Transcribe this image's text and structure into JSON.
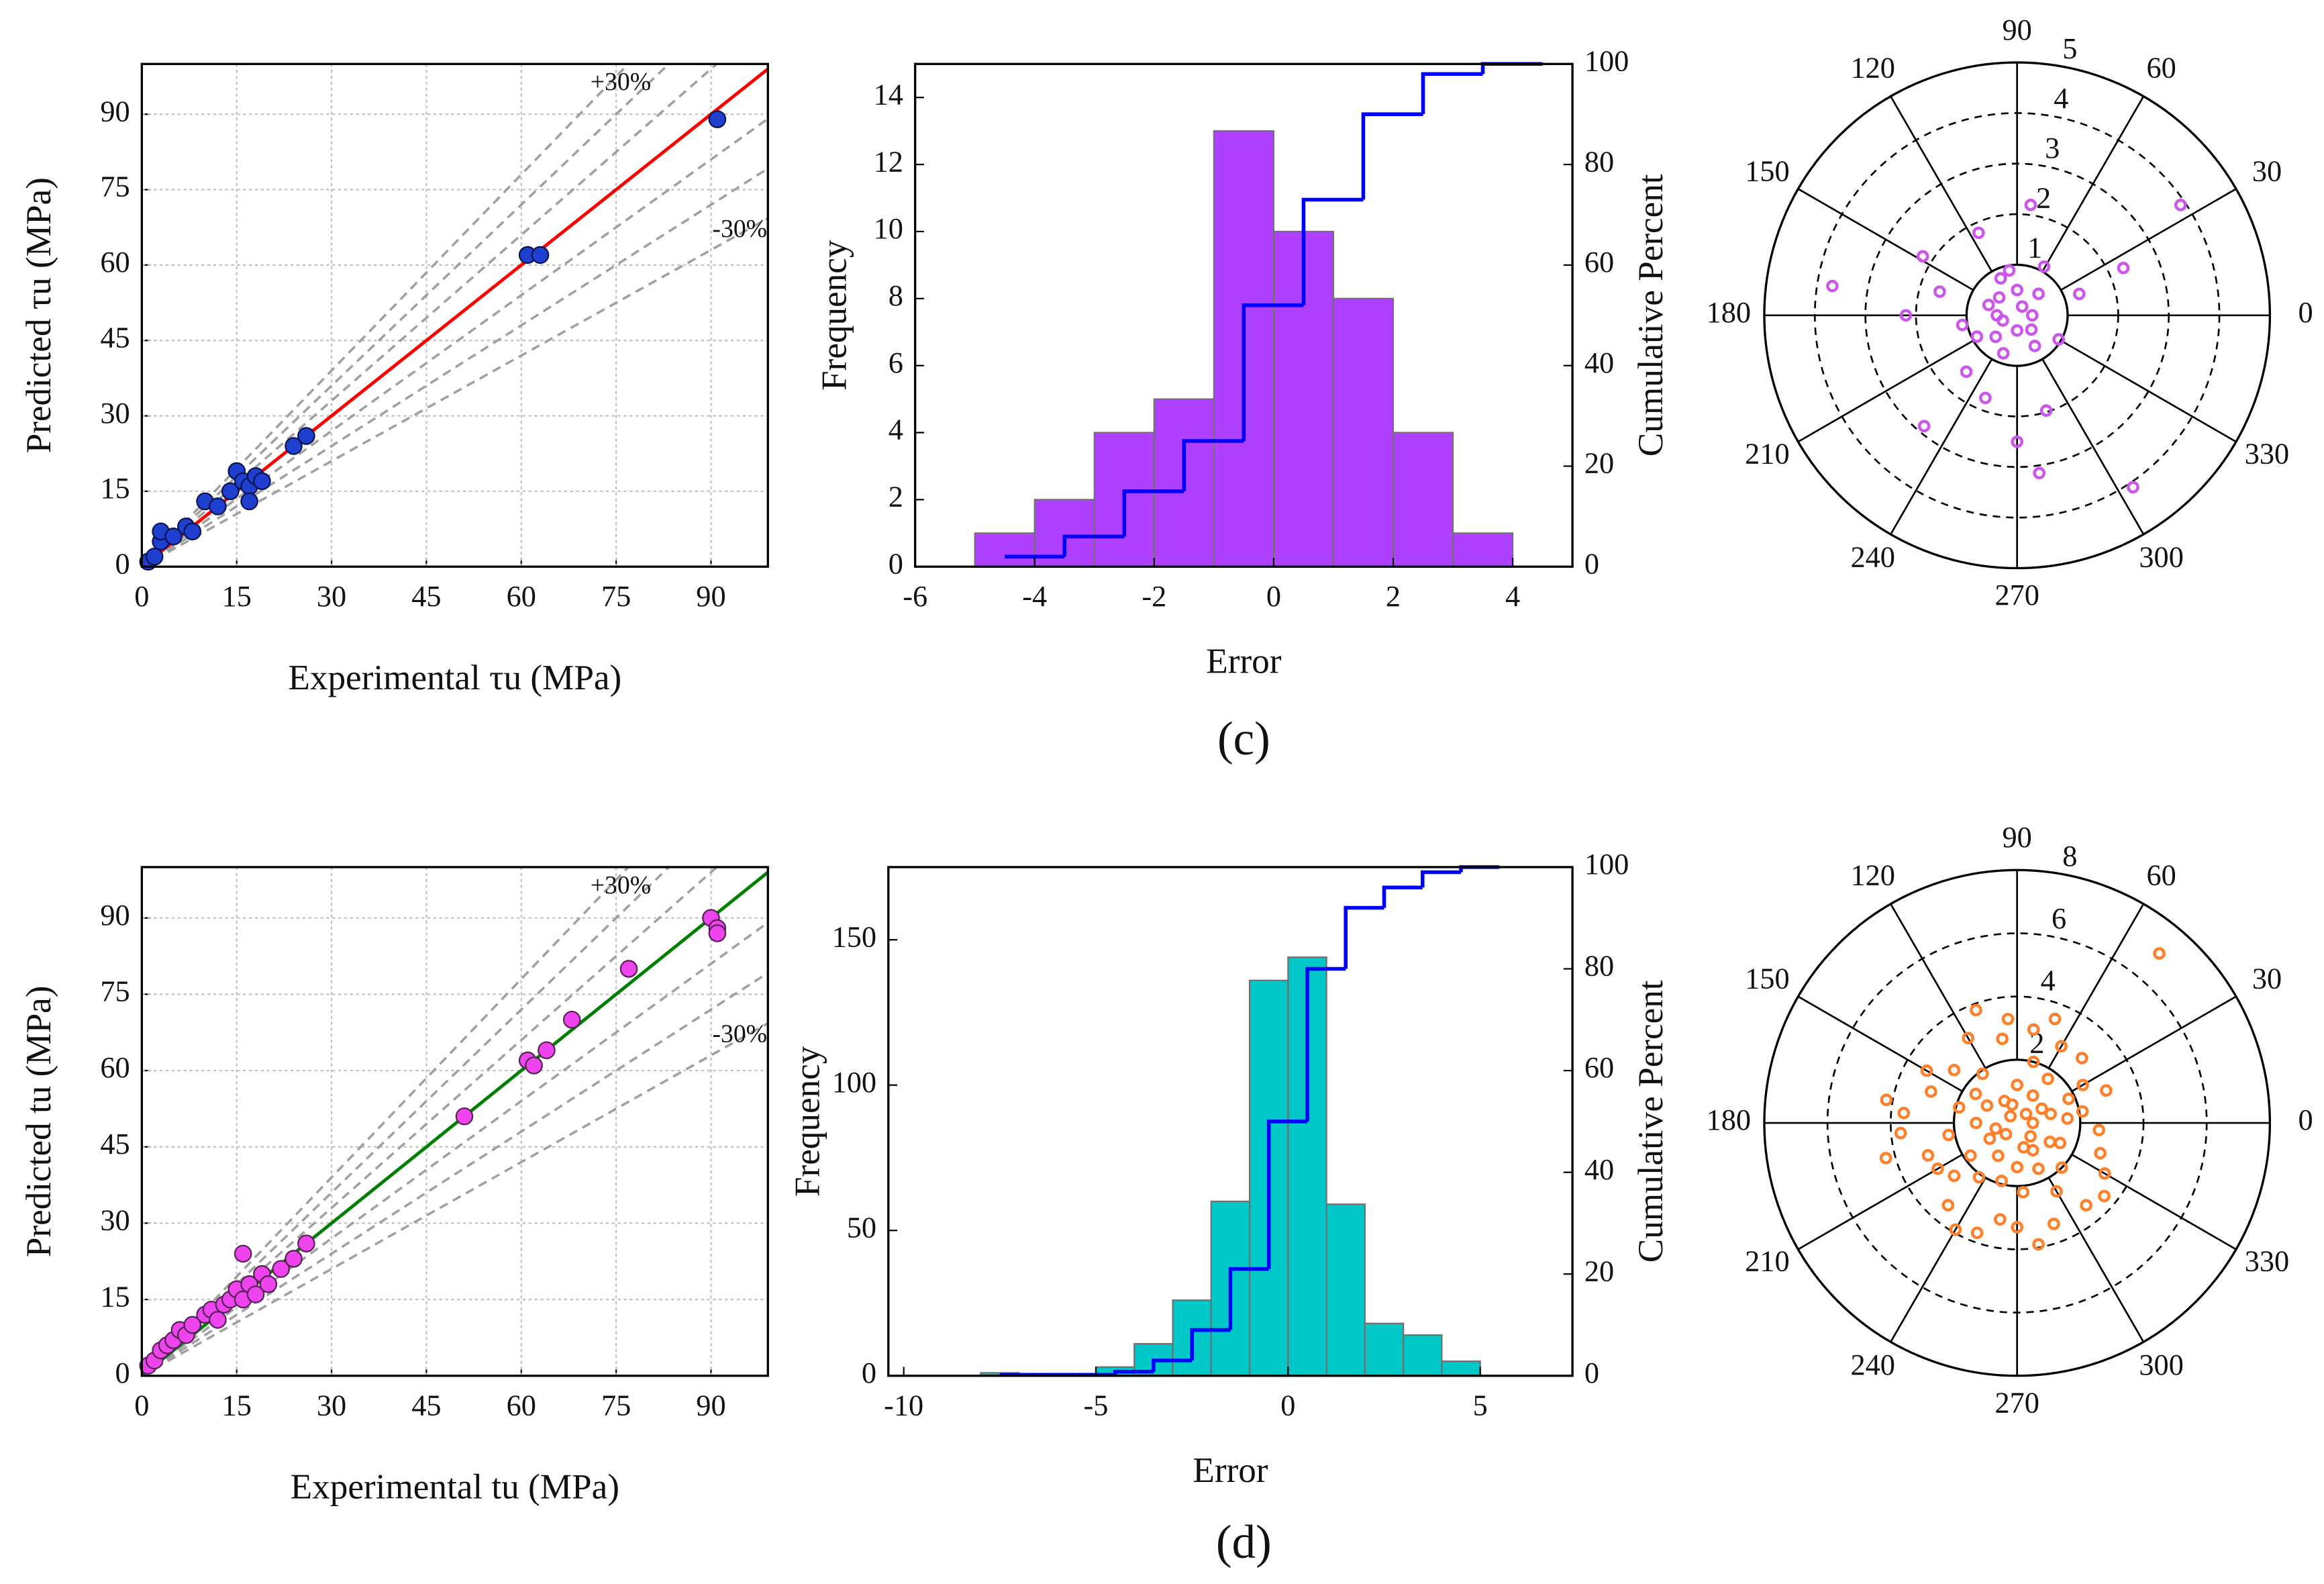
{
  "chart_data": [
    {
      "type": "scatter",
      "x_label": "Experimental τu (MPa)",
      "y_label": "Predicted τu (MPa)",
      "x": [
        1,
        2,
        3,
        3,
        5,
        7,
        8,
        10,
        12,
        14,
        15,
        16,
        17,
        18,
        19,
        17,
        24,
        26,
        61,
        63,
        91
      ],
      "values": [
        1,
        2,
        5,
        7,
        6,
        8,
        7,
        13,
        12,
        15,
        19,
        17,
        16,
        18,
        17,
        13,
        24,
        26,
        62,
        62,
        89
      ],
      "color": "#1f3fcf",
      "edge_color": "#0a1450",
      "xlim": [
        0,
        99
      ],
      "ylim": [
        0,
        100
      ],
      "xticks": [
        0,
        15,
        30,
        45,
        60,
        75,
        90
      ],
      "yticks": [
        0,
        15,
        30,
        45,
        60,
        75,
        90
      ],
      "grid": true,
      "fit": {
        "slope": 1,
        "color": "#ff0000"
      },
      "reference_slopes": [
        1.3,
        1.2,
        1.1,
        0.9,
        0.8,
        0.7
      ],
      "reference_color": "#a0a0a0",
      "annotations": [
        "+30%",
        "-30%"
      ]
    },
    {
      "type": "histogram",
      "x_label": "Error",
      "y_label": "Frequency",
      "y2_label": "Cumulative Percent",
      "bins": [
        -5,
        -4,
        -3,
        -2,
        -1,
        0,
        1,
        2,
        3,
        4
      ],
      "values": [
        1,
        2,
        4,
        5,
        13,
        10,
        8,
        4,
        1
      ],
      "color": "#b040ff",
      "edge_color": "#707070",
      "cumulative": {
        "values": [
          2,
          6,
          15,
          25,
          52,
          73,
          90,
          98,
          100
        ],
        "color": "#0000ff",
        "axis": "y2"
      },
      "xlim": [
        -6,
        5
      ],
      "ylim": [
        0,
        15
      ],
      "y2lim": [
        0,
        100
      ],
      "xticks": [
        -6,
        -4,
        -2,
        0,
        2,
        4
      ],
      "yticks": [
        0,
        2,
        4,
        6,
        8,
        10,
        12,
        14
      ],
      "y2ticks": [
        0,
        20,
        40,
        60,
        80,
        100
      ]
    },
    {
      "type": "polar",
      "theta": [
        34,
        24,
        83,
        115,
        148,
        171,
        180,
        163,
        208,
        228,
        249,
        230,
        270,
        278,
        287,
        304,
        330,
        19,
        61,
        114,
        190,
        0,
        90,
        180,
        270,
        45,
        135,
        225,
        315,
        60,
        200,
        100,
        250,
        160,
        300
      ],
      "r": [
        3.9,
        2.3,
        2.2,
        1.8,
        2.2,
        3.7,
        2.2,
        1.6,
        0.9,
        1.5,
        1.75,
        2.86,
        2.5,
        3.15,
        1.97,
        4.1,
        0.95,
        1.3,
        1.1,
        0.8,
        1.1,
        0.3,
        0.5,
        0.4,
        0.3,
        0.6,
        0.5,
        0.6,
        0.4,
        0.2,
        0.3,
        0.9,
        0.8,
        0.6,
        0.7
      ],
      "color": "#cc55ee",
      "rlim": [
        0,
        5
      ],
      "rticks": [
        1,
        2,
        3,
        4,
        5
      ],
      "rtick_color": "#1a1acc",
      "thetaticks": [
        0,
        30,
        60,
        90,
        120,
        150,
        180,
        210,
        240,
        270,
        300,
        330
      ]
    },
    {
      "type": "scatter",
      "x_label": "Experimental tu (MPa)",
      "y_label": "Predicted tu (MPa)",
      "x": [
        1,
        2,
        3,
        4,
        5,
        6,
        7,
        8,
        10,
        11,
        12,
        13,
        14,
        15,
        16,
        16,
        17,
        18,
        19,
        20,
        22,
        24,
        26,
        51,
        61,
        62,
        64,
        68,
        77,
        90,
        91,
        91
      ],
      "values": [
        2,
        3,
        5,
        6,
        7,
        9,
        8,
        10,
        12,
        13,
        11,
        14,
        15,
        17,
        24,
        15,
        18,
        16,
        20,
        18,
        21,
        23,
        26,
        51,
        62,
        61,
        64,
        70,
        80,
        90,
        88,
        87
      ],
      "color": "#ee44ee",
      "edge_color": "#552255",
      "xlim": [
        0,
        99
      ],
      "ylim": [
        0,
        100
      ],
      "xticks": [
        0,
        15,
        30,
        45,
        60,
        75,
        90
      ],
      "yticks": [
        0,
        15,
        30,
        45,
        60,
        75,
        90
      ],
      "grid": true,
      "fit": {
        "slope": 1,
        "color": "#007f00"
      },
      "reference_slopes": [
        1.3,
        1.2,
        1.1,
        0.9,
        0.8,
        0.7
      ],
      "reference_color": "#a0a0a0",
      "annotations": [
        "+30%",
        "-30%"
      ]
    },
    {
      "type": "histogram",
      "x_label": "Error",
      "y_label": "Frequency",
      "y2_label": "Cumulative Percent",
      "bins": [
        -8,
        -7,
        -6,
        -5,
        -4,
        -3,
        -2,
        -1,
        0,
        1,
        2,
        3,
        4,
        5
      ],
      "values": [
        1,
        0,
        0,
        3,
        11,
        26,
        60,
        136,
        144,
        59,
        18,
        14,
        5
      ],
      "color": "#00c8c8",
      "edge_color": "#707070",
      "cumulative": {
        "values": [
          0.2,
          0.2,
          0.2,
          0.8,
          3,
          9,
          21,
          50,
          80,
          92,
          96,
          99,
          100
        ],
        "color": "#0000ff",
        "axis": "y2"
      },
      "xlim": [
        -10.4,
        7.4
      ],
      "ylim": [
        0,
        175
      ],
      "y2lim": [
        0,
        100
      ],
      "xticks": [
        -10,
        -5,
        0,
        5
      ],
      "yticks": [
        0,
        50,
        100,
        150
      ],
      "y2ticks": [
        0,
        20,
        40,
        60,
        80,
        100
      ]
    },
    {
      "type": "polar",
      "theta": [
        50,
        170,
        175,
        150,
        160,
        140,
        120,
        110,
        100,
        95,
        80,
        70,
        60,
        45,
        30,
        20,
        10,
        355,
        340,
        330,
        320,
        310,
        300,
        290,
        280,
        270,
        260,
        250,
        240,
        230,
        220,
        210,
        200,
        190,
        185,
        195,
        215,
        235,
        255,
        275,
        295,
        315,
        335,
        5,
        25,
        55,
        75,
        125,
        145,
        165,
        0,
        30,
        60,
        90,
        120,
        150,
        180,
        210,
        240,
        270,
        300,
        330,
        15,
        105,
        195,
        285,
        45,
        135,
        225,
        315
      ],
      "r": [
        7.0,
        4.2,
        3.6,
        3.3,
        2.9,
        2.6,
        3.1,
        3.8,
        2.7,
        3.3,
        3.0,
        3.5,
        2.8,
        2.9,
        2.4,
        3.0,
        2.1,
        2.6,
        2.8,
        3.2,
        3.6,
        3.4,
        2.5,
        3.4,
        3.9,
        3.3,
        3.1,
        3.7,
        3.9,
        3.4,
        2.6,
        2.9,
        3.0,
        2.2,
        3.7,
        4.3,
        1.8,
        2.1,
        1.9,
        2.2,
        1.6,
        2.0,
        1.5,
        1.6,
        1.8,
        1.7,
        2.0,
        1.9,
        1.6,
        1.9,
        0.5,
        0.9,
        1.0,
        1.2,
        0.8,
        1.1,
        1.3,
        1.0,
        1.2,
        1.4,
        1.0,
        1.2,
        1.1,
        0.6,
        0.7,
        0.8,
        0.4,
        0.3,
        0.5,
        0.6
      ],
      "color": "#ff7f2a",
      "rlim": [
        0,
        8
      ],
      "rticks": [
        2,
        4,
        6,
        8
      ],
      "rtick_color": "#1a1acc",
      "thetaticks": [
        0,
        30,
        60,
        90,
        120,
        150,
        180,
        210,
        240,
        270,
        300,
        330
      ]
    }
  ],
  "captions": [
    "(c)",
    "(d)"
  ]
}
